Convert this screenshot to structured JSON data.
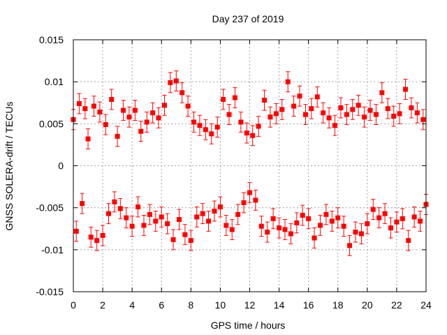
{
  "chart_data": {
    "type": "scatter",
    "title": "Day 237 of 2019",
    "xlabel": "GPS time / hours",
    "ylabel": "GNSS SOLERA-drift / TECUs",
    "xlim": [
      0,
      24
    ],
    "ylim": [
      -0.015,
      0.015
    ],
    "x_ticks": [
      0,
      2,
      4,
      6,
      8,
      10,
      12,
      14,
      16,
      18,
      20,
      22,
      24
    ],
    "x_tick_labels": [
      "0",
      "2",
      "4",
      "6",
      "8",
      "10",
      "12",
      "14",
      "16",
      "18",
      "20",
      "22",
      "24"
    ],
    "y_ticks": [
      -0.015,
      -0.01,
      -0.005,
      0,
      0.005,
      0.01,
      0.015
    ],
    "y_tick_labels": [
      "-0.015",
      "-0.01",
      "-0.005",
      "0",
      "0.005",
      "0.01",
      "0.015"
    ],
    "grid": true,
    "legend": "none",
    "series_color": "#ff0000",
    "error_bars": true,
    "typical_error": 0.0012,
    "series": [
      {
        "x": [
          0.0,
          0.2,
          0.4,
          0.6,
          0.8,
          1.0,
          1.2,
          1.4,
          1.6,
          1.8,
          2.0,
          2.2,
          2.4,
          2.6,
          2.8,
          3.0,
          3.2,
          3.4,
          3.6,
          3.8,
          4.0,
          4.2,
          4.4,
          4.6,
          4.8,
          5.0,
          5.2,
          5.4,
          5.6,
          5.8,
          6.0,
          6.2,
          6.4,
          6.6,
          6.8,
          7.0,
          7.2,
          7.4,
          7.6,
          7.8,
          8.0,
          8.2,
          8.4,
          8.6,
          8.8,
          9.0,
          9.2,
          9.4,
          9.6,
          9.8,
          10.0,
          10.2,
          10.4,
          10.6,
          10.8,
          11.0,
          11.2,
          11.4,
          11.6,
          11.8,
          12.0,
          12.2,
          12.4,
          12.6,
          12.8,
          13.0,
          13.2,
          13.4,
          13.6,
          13.8,
          14.0,
          14.2,
          14.4,
          14.6,
          14.8,
          15.0,
          15.2,
          15.4,
          15.6,
          15.8,
          16.0,
          16.2,
          16.4,
          16.6,
          16.8,
          17.0,
          17.2,
          17.4,
          17.6,
          17.8,
          18.0,
          18.2,
          18.4,
          18.6,
          18.8,
          19.0,
          19.2,
          19.4,
          19.6,
          19.8,
          20.0,
          20.2,
          20.4,
          20.6,
          20.8,
          21.0,
          21.2,
          21.4,
          21.6,
          21.8,
          22.0,
          22.2,
          22.4,
          22.6,
          22.8,
          23.0,
          23.2,
          23.4,
          23.6,
          23.8,
          24.0
        ],
        "y": [
          0.0055,
          -0.0078,
          0.0074,
          -0.0045,
          0.0068,
          0.0032,
          -0.0085,
          0.0071,
          -0.0089,
          0.0064,
          -0.0083,
          0.0049,
          -0.0057,
          0.0079,
          -0.0043,
          0.0035,
          -0.0051,
          0.0066,
          -0.0062,
          0.0058,
          -0.0072,
          0.0066,
          -0.0049,
          0.0041,
          -0.0071,
          0.0052,
          -0.0058,
          0.0063,
          -0.0066,
          0.0057,
          -0.0061,
          0.0072,
          -0.0069,
          0.0099,
          -0.0088,
          0.0101,
          -0.0064,
          0.0087,
          -0.0082,
          0.0071,
          -0.0089,
          0.0052,
          -0.0061,
          0.0048,
          -0.0057,
          0.0043,
          -0.0066,
          0.0038,
          -0.0054,
          0.0046,
          -0.0049,
          0.0079,
          -0.0071,
          0.0061,
          -0.0076,
          0.0081,
          -0.0058,
          0.0052,
          -0.0044,
          0.0039,
          -0.0032,
          0.0036,
          -0.0041,
          0.0047,
          -0.0072,
          0.0078,
          -0.0079,
          0.0058,
          -0.0063,
          0.0062,
          -0.0074,
          0.0067,
          -0.0076,
          0.01,
          -0.0081,
          0.0071,
          -0.0068,
          0.0083,
          -0.0059,
          0.0061,
          -0.0063,
          0.0068,
          -0.0086,
          0.0082,
          -0.0071,
          0.0063,
          -0.0058,
          0.0057,
          -0.0066,
          0.0048,
          -0.0062,
          0.0069,
          -0.0072,
          0.0061,
          -0.0095,
          0.0067,
          -0.0079,
          0.0072,
          -0.0081,
          0.0058,
          -0.0069,
          0.0066,
          -0.0052,
          0.0061,
          -0.0062,
          0.0087,
          -0.0057,
          0.0068,
          -0.0074,
          0.0059,
          -0.0067,
          0.0062,
          -0.0063,
          0.0091,
          -0.0089,
          0.0069,
          -0.0061,
          0.0063,
          -0.0066,
          0.0055,
          -0.0046
        ]
      }
    ]
  }
}
